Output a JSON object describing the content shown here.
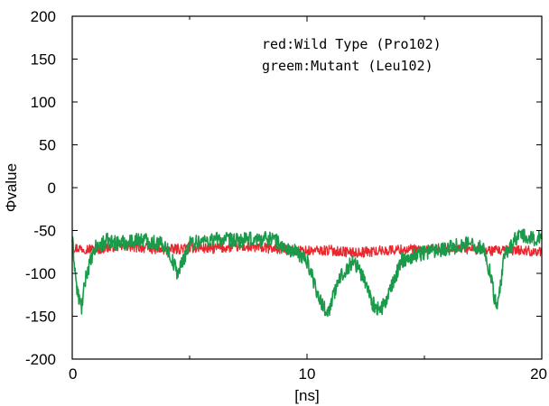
{
  "chart_data": {
    "type": "line",
    "title": "",
    "xlabel": "[ns]",
    "ylabel": "Φvalue",
    "xlim": [
      0,
      20
    ],
    "ylim": [
      -200,
      200
    ],
    "x_ticks": [
      0,
      10,
      20
    ],
    "y_ticks": [
      200,
      150,
      100,
      50,
      0,
      -50,
      -100,
      -150,
      -200
    ],
    "grid": false,
    "annotations": [
      "red:Wild Type (Pro102)",
      "greem:Mutant (Leu102)"
    ],
    "series": [
      {
        "color": "#e8282e",
        "x": [
          0,
          1,
          2,
          3,
          4,
          5,
          6,
          7,
          8,
          9,
          10,
          11,
          12,
          13,
          14,
          15,
          16,
          17,
          18,
          19,
          20
        ],
        "values": [
          -70,
          -72,
          -68,
          -70,
          -73,
          -70,
          -71,
          -69,
          -70,
          -72,
          -74,
          -73,
          -76,
          -74,
          -72,
          -73,
          -70,
          -72,
          -74,
          -73,
          -75
        ]
      },
      {
        "color": "#1a9a4a",
        "x": [
          0,
          0.2,
          0.4,
          0.6,
          1,
          1.5,
          2,
          3,
          4,
          4.5,
          5,
          6,
          7,
          8,
          8.5,
          9,
          9.5,
          10,
          10.3,
          10.6,
          10.9,
          11.2,
          11.5,
          12,
          12.5,
          12.8,
          13.1,
          13.4,
          13.7,
          14,
          15,
          16,
          17,
          17.5,
          17.8,
          18.1,
          18.4,
          19,
          19.5,
          20
        ],
        "values": [
          -60,
          -120,
          -140,
          -100,
          -70,
          -62,
          -65,
          -60,
          -68,
          -100,
          -65,
          -60,
          -62,
          -60,
          -58,
          -70,
          -75,
          -85,
          -110,
          -135,
          -145,
          -120,
          -100,
          -85,
          -110,
          -135,
          -145,
          -130,
          -110,
          -85,
          -75,
          -70,
          -65,
          -70,
          -100,
          -145,
          -80,
          -55,
          -60,
          -58
        ]
      }
    ]
  }
}
